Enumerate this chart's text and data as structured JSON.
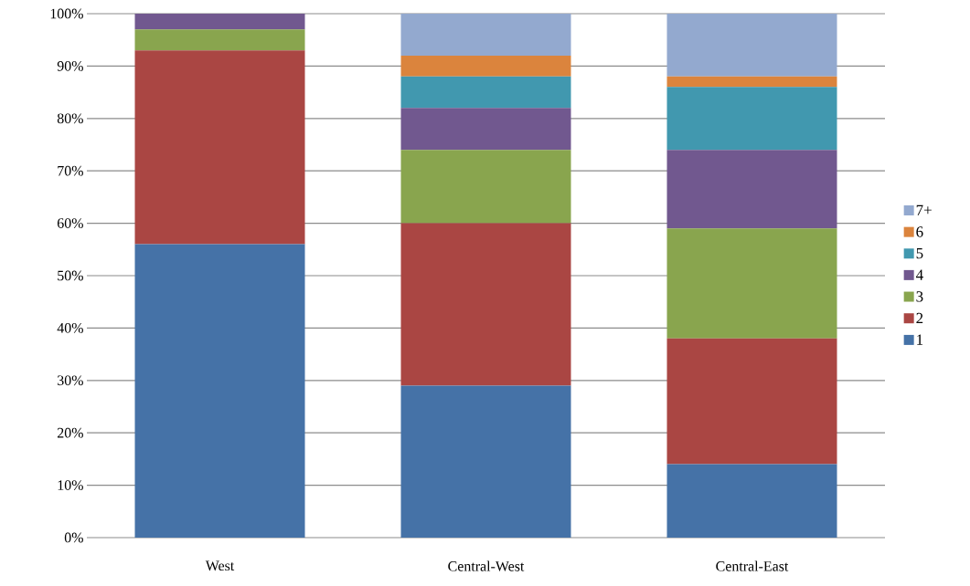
{
  "chart_data": {
    "type": "bar",
    "stacked": true,
    "categories": [
      "West",
      "Central-West",
      "Central-East"
    ],
    "series": [
      {
        "name": "1",
        "color": "#4572a7",
        "values": [
          56,
          29,
          14
        ]
      },
      {
        "name": "2",
        "color": "#aa4643",
        "values": [
          37,
          31,
          24
        ]
      },
      {
        "name": "3",
        "color": "#89a54e",
        "values": [
          4,
          14,
          21
        ]
      },
      {
        "name": "4",
        "color": "#71588f",
        "values": [
          3,
          8,
          15
        ]
      },
      {
        "name": "5",
        "color": "#4198af",
        "values": [
          0,
          6,
          12
        ]
      },
      {
        "name": "6",
        "color": "#db843d",
        "values": [
          0,
          4,
          2
        ]
      },
      {
        "name": "7+",
        "color": "#93a9cf",
        "values": [
          0,
          8,
          12
        ]
      }
    ],
    "ylim": [
      0,
      100
    ],
    "yticks": [
      {
        "value": 0,
        "label": "0%"
      },
      {
        "value": 10,
        "label": "10%"
      },
      {
        "value": 20,
        "label": "20%"
      },
      {
        "value": 30,
        "label": "30%"
      },
      {
        "value": 40,
        "label": "40%"
      },
      {
        "value": 50,
        "label": "50%"
      },
      {
        "value": 60,
        "label": "60%"
      },
      {
        "value": 70,
        "label": "70%"
      },
      {
        "value": 80,
        "label": "80%"
      },
      {
        "value": 90,
        "label": "90%"
      },
      {
        "value": 100,
        "label": "100%"
      }
    ],
    "grid": "y",
    "legend": "right"
  }
}
